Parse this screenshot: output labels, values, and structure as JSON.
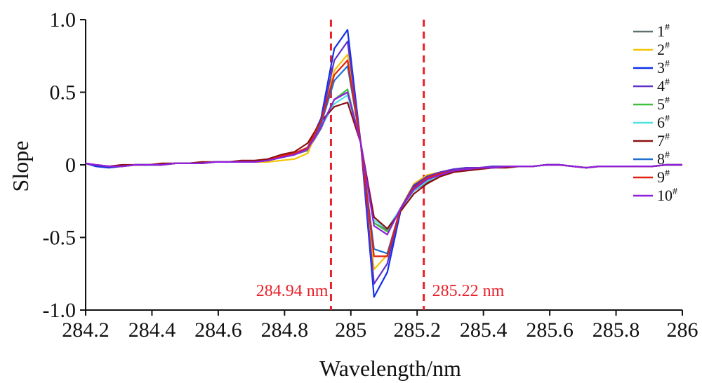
{
  "chart_data": {
    "type": "line",
    "xlabel": "Wavelength/nm",
    "ylabel": "Slope",
    "xlim": [
      284.2,
      286.0
    ],
    "ylim": [
      -1.0,
      1.0
    ],
    "x_ticks": [
      284.2,
      284.4,
      284.6,
      284.8,
      285.0,
      285.2,
      285.4,
      285.6,
      285.8,
      286.0
    ],
    "x_tick_labels": [
      "284.2",
      "284.4",
      "284.6",
      "284.8",
      "285",
      "285.2",
      "285.4",
      "285.6",
      "285.8",
      "286"
    ],
    "y_ticks": [
      -1.0,
      -0.5,
      0,
      0.5,
      1.0
    ],
    "y_tick_labels": [
      "-1.0",
      "-0.5",
      "0",
      "0.5",
      "1.0"
    ],
    "legend_position": "top-right",
    "x": [
      284.2,
      284.23,
      284.27,
      284.31,
      284.35,
      284.39,
      284.43,
      284.47,
      284.51,
      284.55,
      284.59,
      284.63,
      284.67,
      284.71,
      284.75,
      284.79,
      284.83,
      284.87,
      284.91,
      284.95,
      284.99,
      285.03,
      285.07,
      285.11,
      285.15,
      285.19,
      285.23,
      285.27,
      285.31,
      285.35,
      285.39,
      285.43,
      285.47,
      285.51,
      285.55,
      285.59,
      285.63,
      285.67,
      285.71,
      285.75,
      285.79,
      285.83,
      285.87,
      285.91,
      285.95,
      286.0
    ],
    "series": [
      {
        "name": "1",
        "color": "#607070",
        "values": [
          0.01,
          0.0,
          -0.01,
          -0.01,
          0.0,
          0.0,
          0.0,
          0.01,
          0.01,
          0.01,
          0.02,
          0.02,
          0.02,
          0.02,
          0.03,
          0.05,
          0.07,
          0.1,
          0.25,
          0.45,
          0.5,
          0.15,
          -0.4,
          -0.45,
          -0.3,
          -0.18,
          -0.12,
          -0.08,
          -0.05,
          -0.03,
          -0.02,
          -0.02,
          -0.01,
          -0.01,
          -0.01,
          0.0,
          0.0,
          -0.01,
          -0.02,
          -0.01,
          -0.01,
          -0.01,
          -0.01,
          -0.01,
          0.0,
          0.0
        ]
      },
      {
        "name": "2",
        "color": "#f5c400",
        "values": [
          0.01,
          0.0,
          -0.01,
          -0.01,
          0.0,
          0.0,
          0.0,
          0.01,
          0.01,
          0.01,
          0.02,
          0.02,
          0.02,
          0.02,
          0.02,
          0.03,
          0.04,
          0.08,
          0.3,
          0.65,
          0.76,
          0.15,
          -0.72,
          -0.62,
          -0.3,
          -0.13,
          -0.07,
          -0.05,
          -0.03,
          -0.02,
          -0.02,
          -0.01,
          -0.01,
          -0.01,
          -0.01,
          0.0,
          0.0,
          -0.01,
          -0.02,
          -0.01,
          -0.01,
          -0.01,
          -0.01,
          -0.01,
          0.0,
          0.0
        ]
      },
      {
        "name": "3",
        "color": "#1030e8",
        "values": [
          0.01,
          -0.01,
          -0.02,
          -0.01,
          0.0,
          0.0,
          0.0,
          0.01,
          0.01,
          0.01,
          0.02,
          0.02,
          0.02,
          0.02,
          0.03,
          0.05,
          0.07,
          0.12,
          0.32,
          0.8,
          0.93,
          0.15,
          -0.91,
          -0.74,
          -0.32,
          -0.15,
          -0.08,
          -0.05,
          -0.03,
          -0.02,
          -0.02,
          -0.01,
          -0.01,
          -0.01,
          -0.01,
          0.0,
          0.0,
          -0.01,
          -0.02,
          -0.01,
          -0.01,
          -0.01,
          -0.01,
          -0.01,
          0.0,
          0.0
        ]
      },
      {
        "name": "4",
        "color": "#6030c8",
        "values": [
          0.01,
          0.0,
          -0.01,
          -0.01,
          0.0,
          0.0,
          0.0,
          0.01,
          0.01,
          0.01,
          0.02,
          0.02,
          0.02,
          0.02,
          0.03,
          0.05,
          0.07,
          0.12,
          0.3,
          0.72,
          0.85,
          0.15,
          -0.82,
          -0.68,
          -0.3,
          -0.14,
          -0.08,
          -0.05,
          -0.03,
          -0.02,
          -0.02,
          -0.01,
          -0.01,
          -0.01,
          -0.01,
          0.0,
          0.0,
          -0.01,
          -0.02,
          -0.01,
          -0.01,
          -0.01,
          -0.01,
          -0.01,
          0.0,
          0.0
        ]
      },
      {
        "name": "5",
        "color": "#40c040",
        "values": [
          0.01,
          0.0,
          -0.01,
          -0.01,
          0.0,
          0.0,
          0.0,
          0.01,
          0.01,
          0.01,
          0.02,
          0.02,
          0.02,
          0.02,
          0.03,
          0.05,
          0.07,
          0.11,
          0.26,
          0.45,
          0.52,
          0.15,
          -0.4,
          -0.46,
          -0.3,
          -0.18,
          -0.11,
          -0.07,
          -0.04,
          -0.03,
          -0.02,
          -0.02,
          -0.01,
          -0.01,
          -0.01,
          0.0,
          0.0,
          -0.01,
          -0.02,
          -0.01,
          -0.01,
          -0.01,
          -0.01,
          -0.01,
          0.0,
          0.0
        ]
      },
      {
        "name": "6",
        "color": "#50e0e0",
        "values": [
          0.01,
          0.0,
          -0.01,
          -0.01,
          0.0,
          0.0,
          0.0,
          0.01,
          0.01,
          0.01,
          0.02,
          0.02,
          0.02,
          0.02,
          0.03,
          0.05,
          0.07,
          0.11,
          0.26,
          0.42,
          0.48,
          0.15,
          -0.38,
          -0.44,
          -0.3,
          -0.18,
          -0.11,
          -0.07,
          -0.04,
          -0.03,
          -0.02,
          -0.02,
          -0.01,
          -0.01,
          -0.01,
          0.0,
          0.0,
          -0.01,
          -0.02,
          -0.01,
          -0.01,
          -0.01,
          -0.01,
          -0.01,
          0.0,
          0.0
        ]
      },
      {
        "name": "7",
        "color": "#8b1010",
        "values": [
          0.01,
          0.0,
          -0.01,
          0.0,
          0.0,
          0.0,
          0.01,
          0.01,
          0.01,
          0.02,
          0.02,
          0.02,
          0.03,
          0.03,
          0.04,
          0.07,
          0.09,
          0.15,
          0.3,
          0.4,
          0.43,
          0.15,
          -0.36,
          -0.44,
          -0.32,
          -0.2,
          -0.13,
          -0.08,
          -0.05,
          -0.04,
          -0.03,
          -0.02,
          -0.02,
          -0.01,
          -0.01,
          0.0,
          0.0,
          -0.01,
          -0.02,
          -0.01,
          -0.01,
          -0.01,
          -0.01,
          -0.01,
          0.0,
          0.0
        ]
      },
      {
        "name": "8",
        "color": "#2070d0",
        "values": [
          0.01,
          0.0,
          -0.01,
          -0.01,
          0.0,
          0.0,
          0.0,
          0.01,
          0.01,
          0.01,
          0.02,
          0.02,
          0.02,
          0.02,
          0.03,
          0.05,
          0.07,
          0.11,
          0.28,
          0.58,
          0.68,
          0.15,
          -0.58,
          -0.61,
          -0.3,
          -0.16,
          -0.09,
          -0.06,
          -0.04,
          -0.03,
          -0.02,
          -0.02,
          -0.01,
          -0.01,
          -0.01,
          0.0,
          0.0,
          -0.01,
          -0.02,
          -0.01,
          -0.01,
          -0.01,
          -0.01,
          -0.01,
          0.0,
          0.0
        ]
      },
      {
        "name": "9",
        "color": "#e02010",
        "values": [
          0.01,
          0.0,
          -0.01,
          -0.01,
          0.0,
          0.0,
          0.0,
          0.01,
          0.01,
          0.01,
          0.02,
          0.02,
          0.02,
          0.02,
          0.03,
          0.06,
          0.08,
          0.12,
          0.3,
          0.62,
          0.72,
          0.15,
          -0.63,
          -0.63,
          -0.3,
          -0.16,
          -0.09,
          -0.06,
          -0.04,
          -0.03,
          -0.02,
          -0.02,
          -0.01,
          -0.01,
          -0.01,
          0.0,
          0.0,
          -0.01,
          -0.02,
          -0.01,
          -0.01,
          -0.01,
          -0.01,
          -0.01,
          0.0,
          0.0
        ]
      },
      {
        "name": "10",
        "color": "#9020e0",
        "values": [
          0.01,
          0.0,
          -0.01,
          -0.01,
          0.0,
          0.0,
          0.0,
          0.01,
          0.01,
          0.01,
          0.02,
          0.02,
          0.02,
          0.02,
          0.03,
          0.05,
          0.07,
          0.11,
          0.26,
          0.45,
          0.5,
          0.15,
          -0.42,
          -0.48,
          -0.3,
          -0.17,
          -0.1,
          -0.07,
          -0.04,
          -0.03,
          -0.02,
          -0.02,
          -0.01,
          -0.01,
          -0.01,
          0.0,
          0.0,
          -0.01,
          -0.02,
          -0.01,
          -0.01,
          -0.01,
          -0.01,
          -0.01,
          0.0,
          0.0
        ]
      }
    ],
    "legend_superscript": "#",
    "annotations": [
      {
        "x": 284.94,
        "label": "284.94 nm",
        "color": "#e8202a"
      },
      {
        "x": 285.22,
        "label": "285.22 nm",
        "color": "#e8202a"
      }
    ]
  }
}
